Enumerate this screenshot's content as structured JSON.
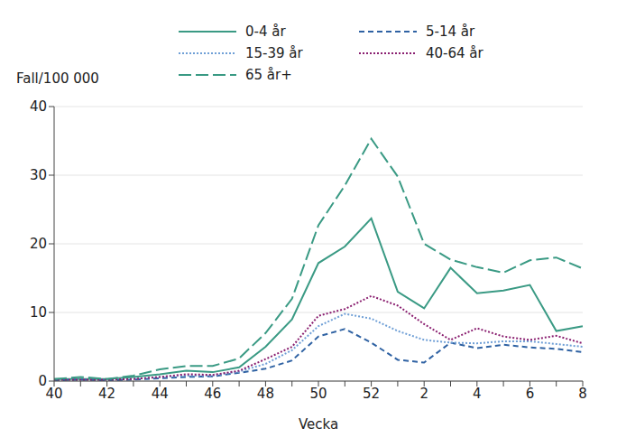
{
  "chart_data": {
    "type": "line",
    "y_label": "Fall/100 000",
    "x_label": "Vecka",
    "categories": [
      "40",
      null,
      "42",
      null,
      "44",
      null,
      "46",
      null,
      "48",
      null,
      "50",
      null,
      "52",
      null,
      "2",
      null,
      "4",
      null,
      "6",
      null,
      "8"
    ],
    "ylim": [
      0,
      40
    ],
    "yticks": [
      0,
      10,
      20,
      30,
      40
    ],
    "grid": true,
    "legend": "top",
    "series": [
      {
        "name": "0-4 år",
        "color": "#3a9a84",
        "line_style": "solid",
        "values": [
          0.3,
          0.3,
          0.3,
          0.6,
          1.0,
          1.5,
          1.3,
          2.0,
          5.0,
          9.0,
          17.2,
          19.6,
          23.7,
          13.0,
          10.6,
          16.5,
          12.8,
          13.2,
          14.0,
          7.3,
          8.0
        ]
      },
      {
        "name": "5-14 år",
        "color": "#2f62a3",
        "line_style": "dashed",
        "values": [
          0.1,
          0.2,
          0.1,
          0.2,
          0.4,
          0.6,
          0.7,
          1.2,
          1.8,
          3.0,
          6.5,
          7.6,
          5.6,
          3.1,
          2.7,
          5.6,
          4.8,
          5.3,
          4.9,
          4.7,
          4.2
        ]
      },
      {
        "name": "15-39 år",
        "color": "#6f9fd6",
        "line_style": "dotted",
        "values": [
          0.2,
          0.2,
          0.2,
          0.3,
          0.6,
          0.8,
          0.8,
          1.4,
          2.5,
          4.5,
          8.0,
          9.8,
          9.1,
          7.3,
          6.0,
          5.6,
          5.5,
          5.8,
          5.8,
          5.4,
          5.0
        ]
      },
      {
        "name": "40-64 år",
        "color": "#8a1f70",
        "line_style": "dotted",
        "values": [
          0.2,
          0.2,
          0.2,
          0.3,
          0.6,
          1.0,
          0.9,
          1.5,
          3.2,
          5.0,
          9.5,
          10.5,
          12.4,
          11.0,
          8.3,
          6.0,
          7.7,
          6.5,
          6.0,
          6.6,
          5.5
        ]
      },
      {
        "name": "65 år+",
        "color": "#3a9a84",
        "line_style": "long_dash",
        "values": [
          0.3,
          0.6,
          0.3,
          0.8,
          1.7,
          2.2,
          2.2,
          3.3,
          7.0,
          12.0,
          22.7,
          28.5,
          35.3,
          29.8,
          20.0,
          17.7,
          16.6,
          15.8,
          17.6,
          18.0,
          16.4
        ]
      }
    ]
  }
}
